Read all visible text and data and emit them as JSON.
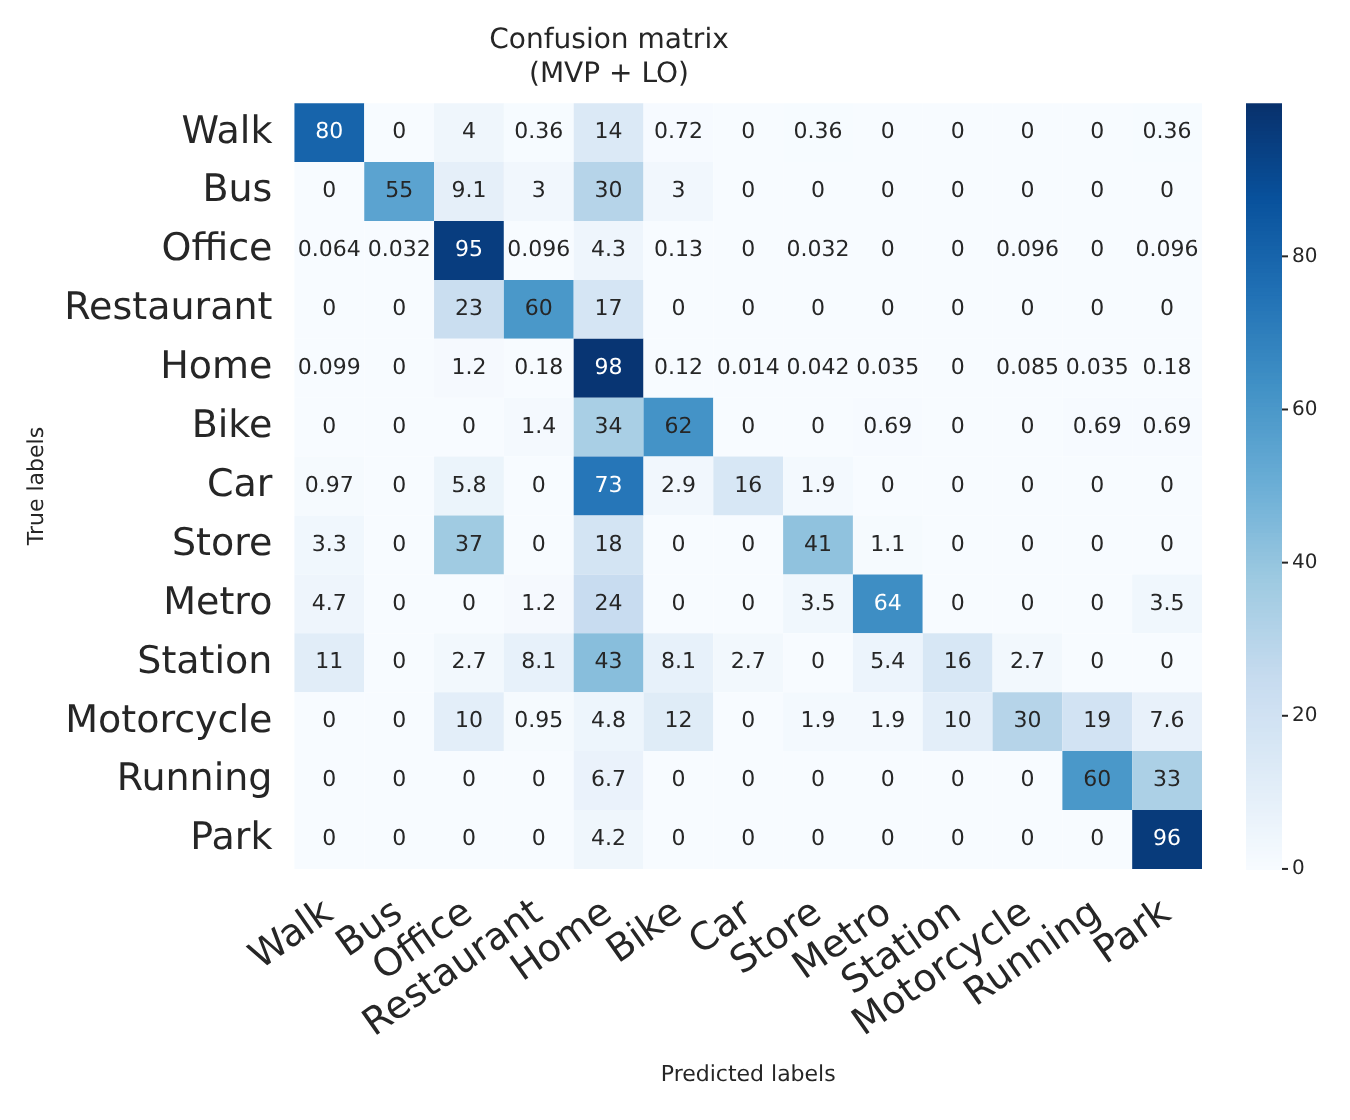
{
  "chart_data": {
    "type": "heatmap",
    "title": "Confusion matrix\n(MVP + LO)",
    "xlabel": "Predicted labels",
    "ylabel": "True labels",
    "categories": [
      "Walk",
      "Bus",
      "Office",
      "Restaurant",
      "Home",
      "Bike",
      "Car",
      "Store",
      "Metro",
      "Station",
      "Motorcycle",
      "Running",
      "Park"
    ],
    "y_categories": [
      "Walk",
      "Bus",
      "Office",
      "Restaurant",
      "Home",
      "Bike",
      "Car",
      "Store",
      "Metro",
      "Station",
      "Motorcycle",
      "Running",
      "Park"
    ],
    "cells": [
      [
        80,
        0,
        4,
        0.36,
        14,
        0.72,
        0,
        0.36,
        0,
        0,
        0,
        0,
        0.36
      ],
      [
        0,
        55,
        9.1,
        3,
        30,
        3,
        0,
        0,
        0,
        0,
        0,
        0,
        0
      ],
      [
        0.064,
        0.032,
        95,
        0.096,
        4.3,
        0.13,
        0,
        0.032,
        0,
        0,
        0.096,
        0,
        0.096
      ],
      [
        0,
        0,
        23,
        60,
        17,
        0,
        0,
        0,
        0,
        0,
        0,
        0,
        0
      ],
      [
        0.099,
        0,
        1.2,
        0.18,
        98,
        0.12,
        0.014,
        0.042,
        0.035,
        0,
        0.085,
        0.035,
        0.18
      ],
      [
        0,
        0,
        0,
        1.4,
        34,
        62,
        0,
        0,
        0.69,
        0,
        0,
        0.69,
        0.69
      ],
      [
        0.97,
        0,
        5.8,
        0,
        73,
        2.9,
        16,
        1.9,
        0,
        0,
        0,
        0,
        0
      ],
      [
        3.3,
        0,
        37,
        0,
        18,
        0,
        0,
        41,
        1.1,
        0,
        0,
        0,
        0
      ],
      [
        4.7,
        0,
        0,
        1.2,
        24,
        0,
        0,
        3.5,
        64,
        0,
        0,
        0,
        3.5
      ],
      [
        11,
        0,
        2.7,
        8.1,
        43,
        8.1,
        2.7,
        0,
        5.4,
        16,
        2.7,
        0,
        0
      ],
      [
        0,
        0,
        10,
        0.95,
        4.8,
        12,
        0,
        1.9,
        1.9,
        10,
        30,
        19,
        7.6
      ],
      [
        0,
        0,
        0,
        0,
        6.7,
        0,
        0,
        0,
        0,
        0,
        0,
        60,
        33
      ],
      [
        0,
        0,
        0,
        0,
        4.2,
        0,
        0,
        0,
        0,
        0,
        0,
        0,
        96
      ]
    ],
    "data_labels": true,
    "clim": [
      0,
      100
    ],
    "cticks": [
      0,
      20,
      40,
      60,
      80
    ]
  }
}
